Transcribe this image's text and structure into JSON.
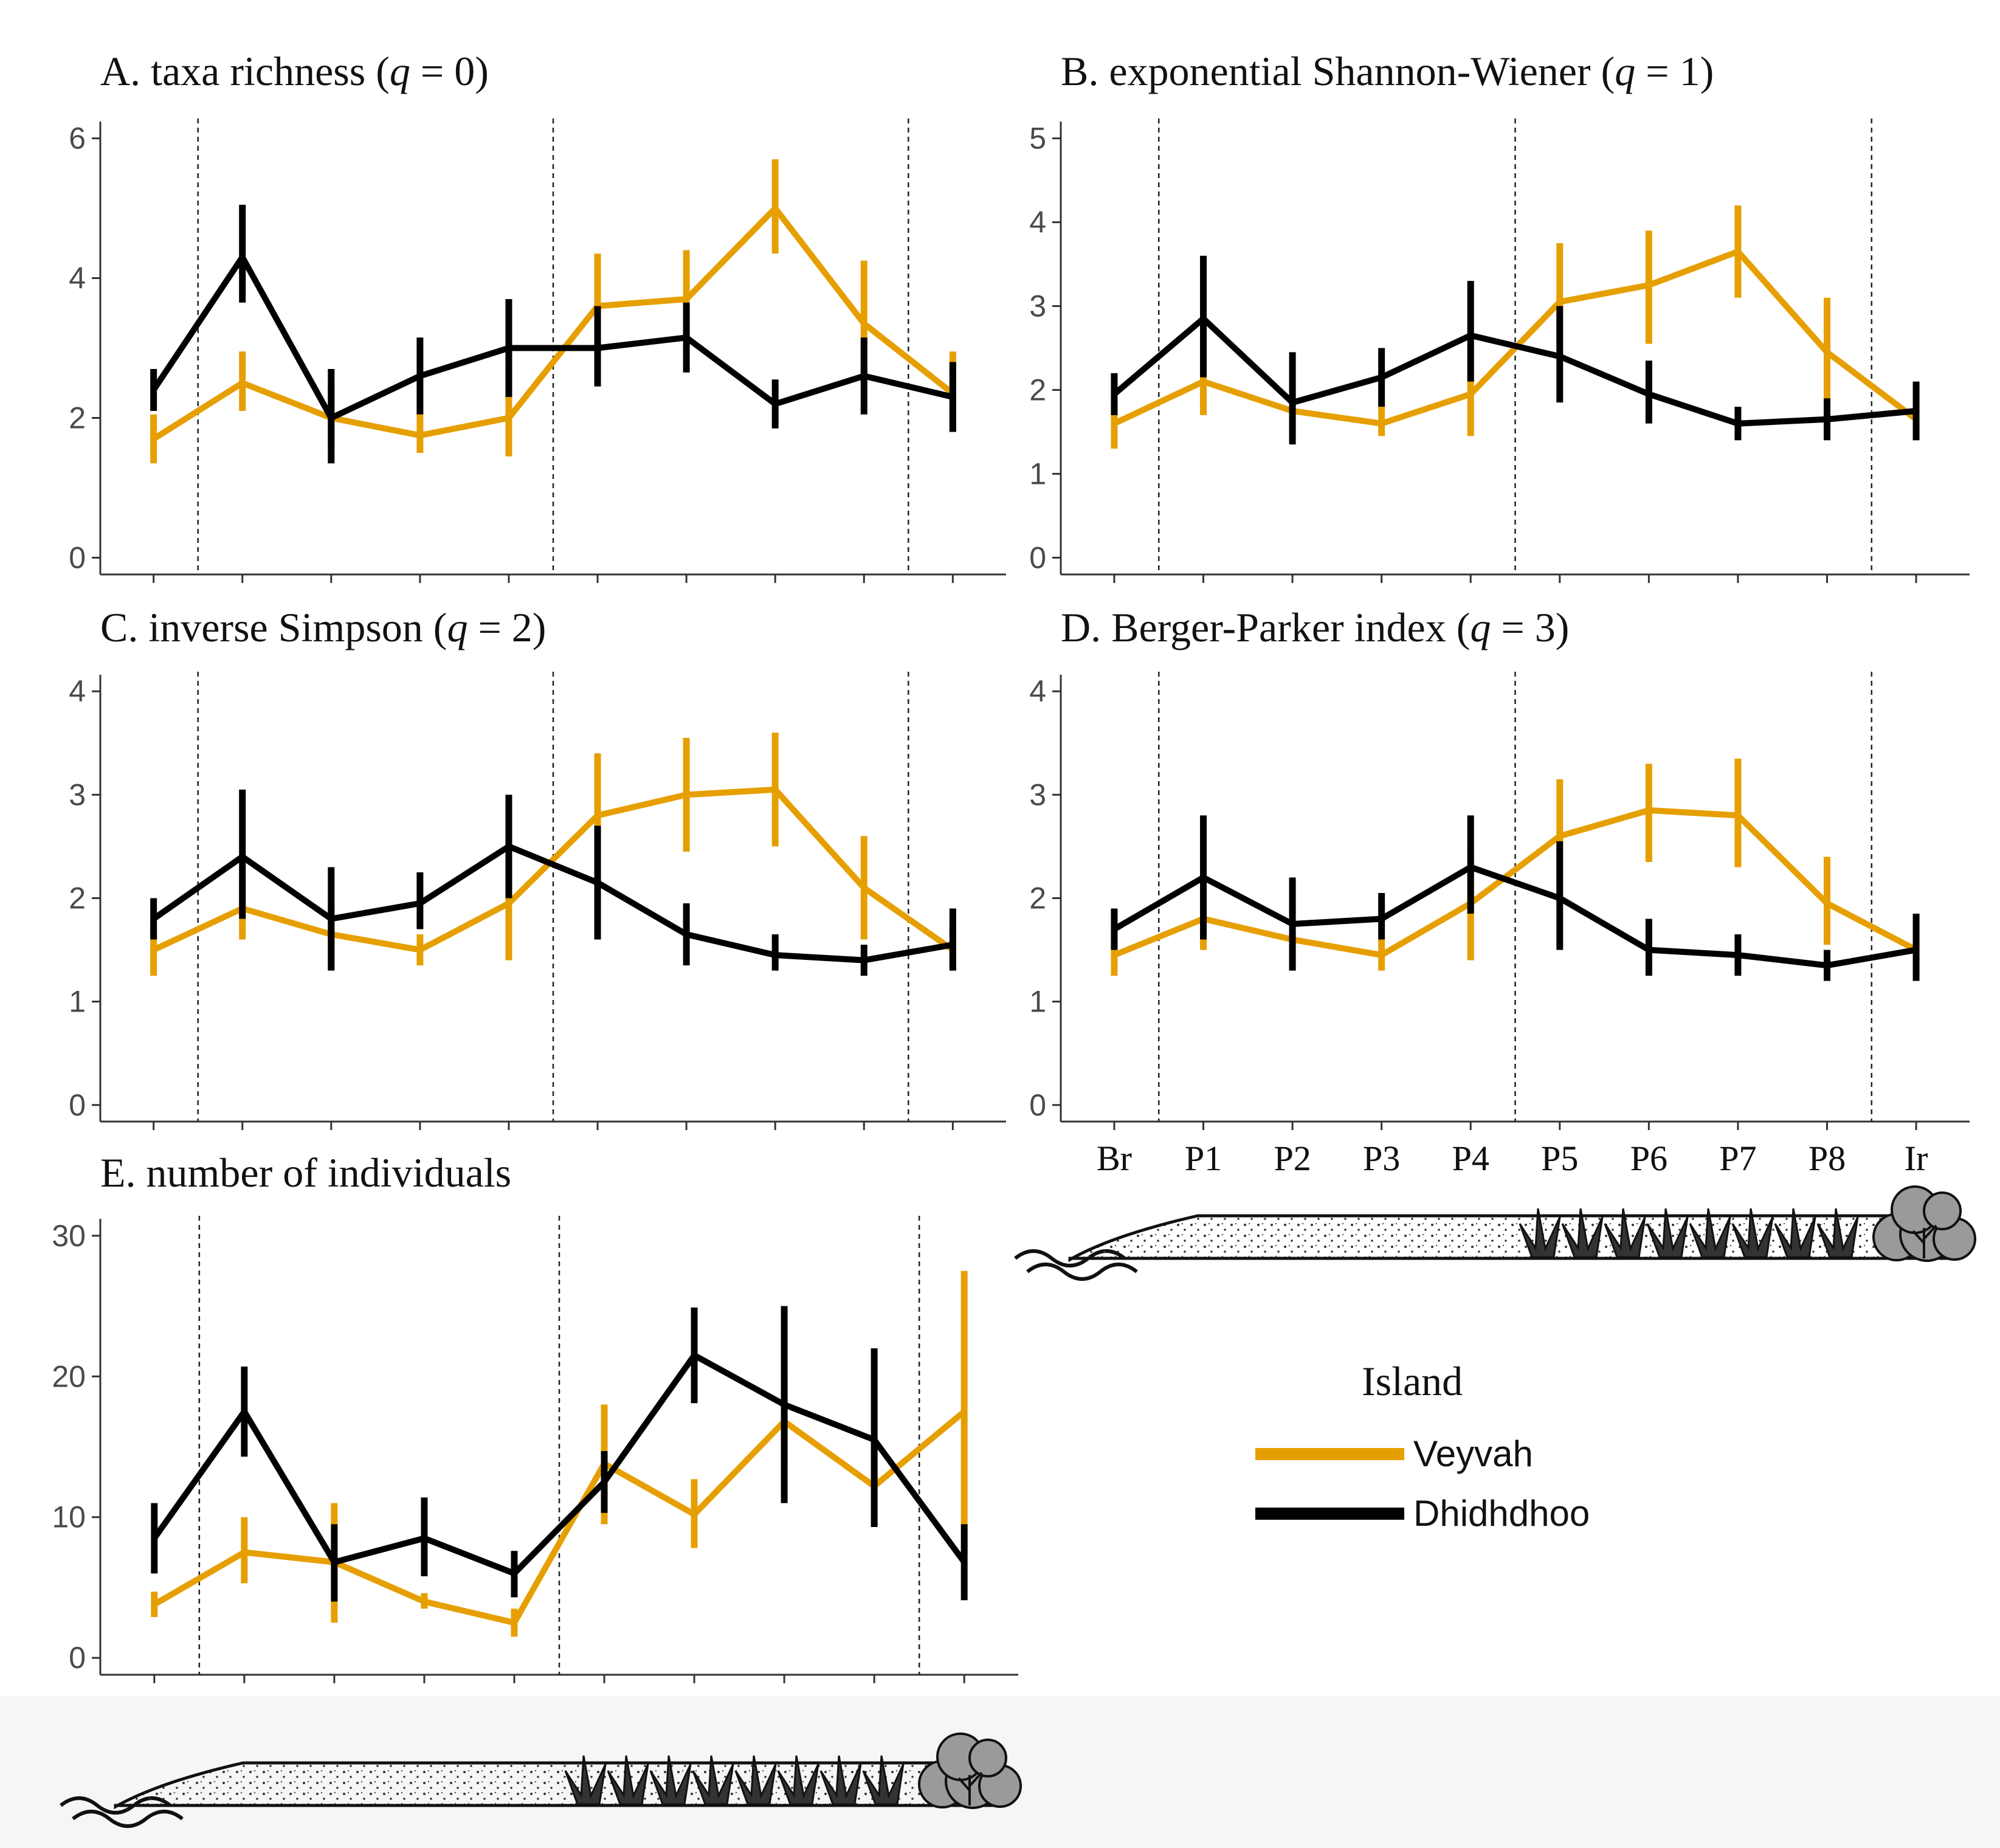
{
  "figure": {
    "legend": {
      "title": "Island",
      "entries": [
        {
          "name": "Veyvah",
          "color": "#E69F00"
        },
        {
          "name": "Dhidhdhoo",
          "color": "#000000"
        }
      ]
    }
  },
  "chart_data": [
    {
      "id": "A",
      "type": "line",
      "title_prefix": "A. taxa richness (",
      "title_q": "q",
      "title_suffix": " = 0)",
      "categories": [
        "Br",
        "P1",
        "P2",
        "P3",
        "P4",
        "P5",
        "P6",
        "P7",
        "P8",
        "Ir"
      ],
      "ylim": [
        0,
        6
      ],
      "yticks": [
        "0",
        "2",
        "4",
        "6"
      ],
      "zone_boundaries": [
        0.5,
        4.5,
        8.5
      ],
      "series": [
        {
          "name": "Veyvah",
          "color": "#E69F00",
          "values": [
            1.7,
            2.5,
            2.0,
            1.75,
            2.0,
            3.6,
            3.7,
            5.0,
            3.35,
            2.35
          ],
          "err_low": [
            1.35,
            2.1,
            1.6,
            1.5,
            1.45,
            2.9,
            3.0,
            4.35,
            2.5,
            1.8
          ],
          "err_high": [
            2.05,
            2.95,
            2.45,
            2.05,
            2.65,
            4.35,
            4.4,
            5.7,
            4.25,
            2.95
          ]
        },
        {
          "name": "Dhidhdhoo",
          "color": "#000000",
          "values": [
            2.4,
            4.3,
            2.0,
            2.6,
            3.0,
            3.0,
            3.15,
            2.2,
            2.6,
            2.3
          ],
          "err_low": [
            2.1,
            3.65,
            1.35,
            2.05,
            2.3,
            2.45,
            2.65,
            1.85,
            2.05,
            1.8
          ],
          "err_high": [
            2.7,
            5.05,
            2.7,
            3.15,
            3.7,
            3.6,
            3.65,
            2.55,
            3.15,
            2.8
          ]
        }
      ]
    },
    {
      "id": "B",
      "type": "line",
      "title_prefix": "B. exponential Shannon-Wiener (",
      "title_q": "q",
      "title_suffix": " = 1)",
      "categories": [
        "Br",
        "P1",
        "P2",
        "P3",
        "P4",
        "P5",
        "P6",
        "P7",
        "P8",
        "Ir"
      ],
      "ylim": [
        0,
        5
      ],
      "yticks": [
        "0",
        "1",
        "2",
        "3",
        "4",
        "5"
      ],
      "zone_boundaries": [
        0.5,
        4.5,
        8.5
      ],
      "series": [
        {
          "name": "Veyvah",
          "color": "#E69F00",
          "values": [
            1.6,
            2.1,
            1.75,
            1.6,
            1.95,
            3.05,
            3.25,
            3.65,
            2.45,
            1.65
          ],
          "err_low": [
            1.3,
            1.7,
            1.45,
            1.45,
            1.45,
            2.35,
            2.55,
            3.1,
            1.85,
            1.4
          ],
          "err_high": [
            1.9,
            2.5,
            2.1,
            1.8,
            2.55,
            3.75,
            3.9,
            4.2,
            3.1,
            1.95
          ]
        },
        {
          "name": "Dhidhdhoo",
          "color": "#000000",
          "values": [
            1.95,
            2.85,
            1.85,
            2.15,
            2.65,
            2.4,
            1.95,
            1.6,
            1.65,
            1.75
          ],
          "err_low": [
            1.7,
            2.15,
            1.35,
            1.8,
            2.1,
            1.85,
            1.6,
            1.4,
            1.4,
            1.4
          ],
          "err_high": [
            2.2,
            3.6,
            2.45,
            2.5,
            3.3,
            3.0,
            2.35,
            1.8,
            1.9,
            2.1
          ]
        }
      ]
    },
    {
      "id": "C",
      "type": "line",
      "title_prefix": "C. inverse Simpson (",
      "title_q": "q",
      "title_suffix": " = 2)",
      "categories": [
        "Br",
        "P1",
        "P2",
        "P3",
        "P4",
        "P5",
        "P6",
        "P7",
        "P8",
        "Ir"
      ],
      "ylim": [
        0,
        4
      ],
      "yticks": [
        "0",
        "1",
        "2",
        "3",
        "4"
      ],
      "zone_boundaries": [
        0.5,
        4.5,
        8.5
      ],
      "series": [
        {
          "name": "Veyvah",
          "color": "#E69F00",
          "values": [
            1.5,
            1.9,
            1.65,
            1.5,
            1.95,
            2.8,
            3.0,
            3.05,
            2.1,
            1.5
          ],
          "err_low": [
            1.25,
            1.6,
            1.35,
            1.35,
            1.4,
            2.2,
            2.45,
            2.5,
            1.6,
            1.3
          ],
          "err_high": [
            1.75,
            2.2,
            1.95,
            1.65,
            2.55,
            3.4,
            3.55,
            3.6,
            2.6,
            1.75
          ]
        },
        {
          "name": "Dhidhdhoo",
          "color": "#000000",
          "values": [
            1.8,
            2.4,
            1.8,
            1.95,
            2.5,
            2.15,
            1.65,
            1.45,
            1.4,
            1.55
          ],
          "err_low": [
            1.6,
            1.8,
            1.3,
            1.7,
            2.0,
            1.6,
            1.35,
            1.3,
            1.25,
            1.3
          ],
          "err_high": [
            2.0,
            3.05,
            2.3,
            2.25,
            3.0,
            2.7,
            1.95,
            1.65,
            1.55,
            1.9
          ]
        }
      ]
    },
    {
      "id": "D",
      "type": "line",
      "title_prefix": "D. Berger-Parker index (",
      "title_q": "q",
      "title_suffix": " = 3)",
      "categories": [
        "Br",
        "P1",
        "P2",
        "P3",
        "P4",
        "P5",
        "P6",
        "P7",
        "P8",
        "Ir"
      ],
      "ylim": [
        0,
        4
      ],
      "yticks": [
        "0",
        "1",
        "2",
        "3",
        "4"
      ],
      "zone_boundaries": [
        0.5,
        4.5,
        8.5
      ],
      "series": [
        {
          "name": "Veyvah",
          "color": "#E69F00",
          "values": [
            1.45,
            1.8,
            1.6,
            1.45,
            1.95,
            2.6,
            2.85,
            2.8,
            1.95,
            1.5
          ],
          "err_low": [
            1.25,
            1.5,
            1.3,
            1.3,
            1.4,
            2.05,
            2.35,
            2.3,
            1.55,
            1.3
          ],
          "err_high": [
            1.7,
            2.1,
            1.95,
            1.6,
            2.45,
            3.15,
            3.3,
            3.35,
            2.4,
            1.7
          ]
        },
        {
          "name": "Dhidhdhoo",
          "color": "#000000",
          "values": [
            1.7,
            2.2,
            1.75,
            1.8,
            2.3,
            2.0,
            1.5,
            1.45,
            1.35,
            1.5
          ],
          "err_low": [
            1.5,
            1.6,
            1.3,
            1.6,
            1.85,
            1.5,
            1.25,
            1.25,
            1.2,
            1.2
          ],
          "err_high": [
            1.9,
            2.8,
            2.2,
            2.05,
            2.8,
            2.55,
            1.8,
            1.65,
            1.5,
            1.85
          ]
        }
      ]
    },
    {
      "id": "E",
      "type": "line",
      "title_prefix": "E. number of individuals",
      "title_q": "",
      "title_suffix": "",
      "categories": [
        "Br",
        "P1",
        "P2",
        "P3",
        "P4",
        "P5",
        "P6",
        "P7",
        "P8",
        "Ir"
      ],
      "ylim": [
        0,
        30
      ],
      "yticks": [
        "0",
        "10",
        "20",
        "30"
      ],
      "zone_boundaries": [
        0.5,
        4.5,
        8.5
      ],
      "series": [
        {
          "name": "Veyvah",
          "color": "#E69F00",
          "values": [
            3.8,
            7.5,
            6.8,
            4.0,
            2.5,
            13.8,
            10.2,
            16.8,
            12.2,
            17.5
          ],
          "err_low": [
            2.9,
            5.3,
            2.5,
            3.5,
            1.5,
            9.5,
            7.8,
            13.3,
            9.5,
            7.5
          ],
          "err_high": [
            4.7,
            10.0,
            11.0,
            4.6,
            3.5,
            18.0,
            12.7,
            20.3,
            15.7,
            27.5
          ]
        },
        {
          "name": "Dhidhdhoo",
          "color": "#000000",
          "values": [
            8.5,
            17.5,
            6.8,
            8.5,
            6.0,
            12.5,
            21.5,
            18.0,
            15.5,
            6.8
          ],
          "err_low": [
            6.0,
            14.3,
            4.0,
            5.8,
            4.3,
            10.3,
            18.1,
            11.0,
            9.3,
            4.1
          ],
          "err_high": [
            11.0,
            20.7,
            9.5,
            11.4,
            7.6,
            14.7,
            24.9,
            25.0,
            22.0,
            9.5
          ]
        }
      ]
    }
  ]
}
